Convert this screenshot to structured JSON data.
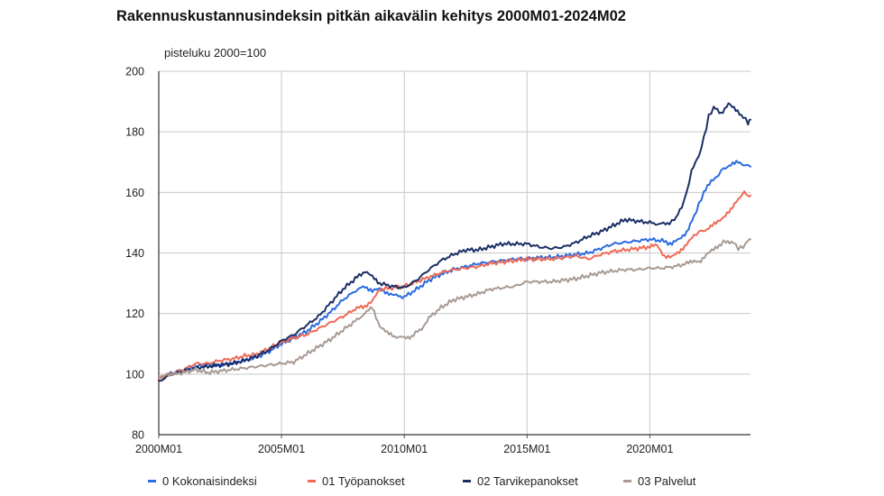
{
  "title": "Rakennuskustannusindeksin pitkän aikavälin kehitys 2000M01-2024M02",
  "unit_label": "pisteluku 2000=100",
  "chart_data": {
    "type": "line",
    "title": "Rakennuskustannusindeksin pitkän aikavälin kehitys 2000M01-2024M02",
    "ylabel": "pisteluku 2000=100",
    "xlabel": "",
    "x_ticks": [
      "2000M01",
      "2005M01",
      "2010M01",
      "2015M01",
      "2020M01"
    ],
    "x_range": [
      2000.0,
      2024.1
    ],
    "ylim": [
      80,
      200
    ],
    "y_ticks": [
      80,
      100,
      120,
      140,
      160,
      180,
      200
    ],
    "grid": true,
    "legend_position": "bottom",
    "series": [
      {
        "name": "0 Kokonaisindeksi",
        "color": "#2b6be0",
        "points": [
          [
            2000.0,
            98.5
          ],
          [
            2000.5,
            100.0
          ],
          [
            2001.0,
            101.0
          ],
          [
            2001.5,
            102.5
          ],
          [
            2002.0,
            103.0
          ],
          [
            2002.5,
            103.0
          ],
          [
            2003.0,
            103.5
          ],
          [
            2003.5,
            104.5
          ],
          [
            2004.0,
            105.5
          ],
          [
            2004.5,
            107.5
          ],
          [
            2005.0,
            110.0
          ],
          [
            2005.5,
            112.0
          ],
          [
            2006.0,
            114.0
          ],
          [
            2006.5,
            117.0
          ],
          [
            2007.0,
            120.5
          ],
          [
            2007.5,
            124.5
          ],
          [
            2008.0,
            127.5
          ],
          [
            2008.4,
            129.0
          ],
          [
            2008.7,
            127.5
          ],
          [
            2009.0,
            128.0
          ],
          [
            2009.3,
            127.0
          ],
          [
            2009.6,
            126.0
          ],
          [
            2010.0,
            125.5
          ],
          [
            2010.5,
            128.0
          ],
          [
            2011.0,
            131.0
          ],
          [
            2011.5,
            133.0
          ],
          [
            2012.0,
            134.5
          ],
          [
            2012.5,
            135.5
          ],
          [
            2013.0,
            136.5
          ],
          [
            2013.5,
            137.0
          ],
          [
            2014.0,
            137.5
          ],
          [
            2014.5,
            138.0
          ],
          [
            2015.0,
            138.0
          ],
          [
            2015.5,
            138.5
          ],
          [
            2016.0,
            138.5
          ],
          [
            2016.5,
            139.0
          ],
          [
            2017.0,
            139.5
          ],
          [
            2017.5,
            140.0
          ],
          [
            2018.0,
            141.5
          ],
          [
            2018.5,
            143.0
          ],
          [
            2019.0,
            143.5
          ],
          [
            2019.5,
            144.0
          ],
          [
            2020.0,
            144.5
          ],
          [
            2020.5,
            144.0
          ],
          [
            2020.9,
            143.0
          ],
          [
            2021.2,
            144.5
          ],
          [
            2021.5,
            147.0
          ],
          [
            2021.8,
            152.0
          ],
          [
            2022.0,
            156.0
          ],
          [
            2022.2,
            160.0
          ],
          [
            2022.5,
            163.5
          ],
          [
            2022.8,
            166.0
          ],
          [
            2023.0,
            168.0
          ],
          [
            2023.3,
            169.0
          ],
          [
            2023.6,
            170.0
          ],
          [
            2023.9,
            169.0
          ],
          [
            2024.1,
            168.5
          ]
        ]
      },
      {
        "name": "01 Työpanokset",
        "color": "#ee6a55",
        "points": [
          [
            2000.0,
            98.5
          ],
          [
            2000.5,
            100.0
          ],
          [
            2001.0,
            101.5
          ],
          [
            2001.5,
            103.5
          ],
          [
            2002.0,
            103.5
          ],
          [
            2002.5,
            104.5
          ],
          [
            2003.0,
            105.0
          ],
          [
            2003.5,
            106.0
          ],
          [
            2004.0,
            106.5
          ],
          [
            2004.5,
            108.5
          ],
          [
            2005.0,
            110.5
          ],
          [
            2005.5,
            112.0
          ],
          [
            2006.0,
            113.0
          ],
          [
            2006.5,
            115.0
          ],
          [
            2007.0,
            117.0
          ],
          [
            2007.5,
            119.0
          ],
          [
            2008.0,
            121.5
          ],
          [
            2008.4,
            122.5
          ],
          [
            2008.7,
            124.0
          ],
          [
            2009.0,
            128.0
          ],
          [
            2009.5,
            128.5
          ],
          [
            2010.0,
            129.0
          ],
          [
            2010.5,
            130.5
          ],
          [
            2011.0,
            132.0
          ],
          [
            2011.5,
            133.5
          ],
          [
            2012.0,
            134.5
          ],
          [
            2012.5,
            135.0
          ],
          [
            2013.0,
            135.5
          ],
          [
            2013.5,
            136.5
          ],
          [
            2014.0,
            137.0
          ],
          [
            2014.5,
            137.5
          ],
          [
            2015.0,
            138.0
          ],
          [
            2015.5,
            138.0
          ],
          [
            2016.0,
            138.0
          ],
          [
            2016.5,
            138.5
          ],
          [
            2017.0,
            139.0
          ],
          [
            2017.5,
            138.0
          ],
          [
            2018.0,
            139.5
          ],
          [
            2018.5,
            140.5
          ],
          [
            2019.0,
            141.0
          ],
          [
            2019.5,
            141.5
          ],
          [
            2020.0,
            142.0
          ],
          [
            2020.3,
            142.5
          ],
          [
            2020.6,
            139.0
          ],
          [
            2020.9,
            138.5
          ],
          [
            2021.2,
            140.5
          ],
          [
            2021.5,
            143.0
          ],
          [
            2021.8,
            145.5
          ],
          [
            2022.0,
            147.0
          ],
          [
            2022.4,
            148.0
          ],
          [
            2022.7,
            150.0
          ],
          [
            2023.0,
            152.0
          ],
          [
            2023.3,
            154.0
          ],
          [
            2023.6,
            158.0
          ],
          [
            2023.85,
            160.0
          ],
          [
            2024.0,
            158.5
          ],
          [
            2024.1,
            159.0
          ]
        ]
      },
      {
        "name": "02 Tarvikepanokset",
        "color": "#1b2f66",
        "points": [
          [
            2000.0,
            97.5
          ],
          [
            2000.5,
            100.0
          ],
          [
            2001.0,
            101.0
          ],
          [
            2001.5,
            102.0
          ],
          [
            2002.0,
            102.5
          ],
          [
            2002.5,
            103.0
          ],
          [
            2003.0,
            103.5
          ],
          [
            2003.5,
            104.5
          ],
          [
            2004.0,
            106.0
          ],
          [
            2004.5,
            108.0
          ],
          [
            2005.0,
            111.0
          ],
          [
            2005.5,
            113.0
          ],
          [
            2006.0,
            116.0
          ],
          [
            2006.5,
            119.0
          ],
          [
            2007.0,
            123.5
          ],
          [
            2007.5,
            128.0
          ],
          [
            2008.0,
            131.5
          ],
          [
            2008.4,
            134.0
          ],
          [
            2008.7,
            132.0
          ],
          [
            2009.0,
            130.0
          ],
          [
            2009.5,
            129.0
          ],
          [
            2010.0,
            128.5
          ],
          [
            2010.5,
            131.0
          ],
          [
            2011.0,
            134.5
          ],
          [
            2011.5,
            137.5
          ],
          [
            2012.0,
            139.5
          ],
          [
            2012.5,
            141.0
          ],
          [
            2013.0,
            141.0
          ],
          [
            2013.5,
            142.0
          ],
          [
            2014.0,
            143.0
          ],
          [
            2014.5,
            143.0
          ],
          [
            2015.0,
            143.0
          ],
          [
            2015.5,
            142.0
          ],
          [
            2016.0,
            141.5
          ],
          [
            2016.5,
            142.0
          ],
          [
            2017.0,
            143.5
          ],
          [
            2017.5,
            145.5
          ],
          [
            2018.0,
            147.0
          ],
          [
            2018.5,
            149.0
          ],
          [
            2019.0,
            151.0
          ],
          [
            2019.5,
            150.5
          ],
          [
            2020.0,
            150.0
          ],
          [
            2020.4,
            149.5
          ],
          [
            2020.8,
            150.0
          ],
          [
            2021.0,
            151.0
          ],
          [
            2021.3,
            155.0
          ],
          [
            2021.5,
            160.0
          ],
          [
            2021.7,
            167.0
          ],
          [
            2022.0,
            172.0
          ],
          [
            2022.2,
            178.0
          ],
          [
            2022.4,
            185.0
          ],
          [
            2022.6,
            188.0
          ],
          [
            2022.9,
            186.0
          ],
          [
            2023.2,
            189.5
          ],
          [
            2023.5,
            187.0
          ],
          [
            2023.8,
            185.0
          ],
          [
            2024.0,
            183.0
          ],
          [
            2024.1,
            184.0
          ]
        ]
      },
      {
        "name": "03 Palvelut",
        "color": "#a89a92",
        "points": [
          [
            2000.0,
            99.0
          ],
          [
            2000.5,
            100.0
          ],
          [
            2001.0,
            100.5
          ],
          [
            2001.5,
            101.5
          ],
          [
            2002.0,
            100.5
          ],
          [
            2002.5,
            101.0
          ],
          [
            2003.0,
            101.5
          ],
          [
            2003.5,
            102.0
          ],
          [
            2004.0,
            102.5
          ],
          [
            2004.5,
            103.0
          ],
          [
            2005.0,
            103.5
          ],
          [
            2005.5,
            104.0
          ],
          [
            2006.0,
            106.5
          ],
          [
            2006.5,
            109.0
          ],
          [
            2007.0,
            111.5
          ],
          [
            2007.5,
            114.5
          ],
          [
            2008.0,
            117.5
          ],
          [
            2008.4,
            120.0
          ],
          [
            2008.7,
            122.0
          ],
          [
            2009.0,
            116.0
          ],
          [
            2009.3,
            113.5
          ],
          [
            2009.6,
            112.5
          ],
          [
            2010.0,
            112.0
          ],
          [
            2010.3,
            112.5
          ],
          [
            2010.7,
            115.0
          ],
          [
            2011.0,
            118.5
          ],
          [
            2011.5,
            122.0
          ],
          [
            2012.0,
            124.5
          ],
          [
            2012.5,
            125.5
          ],
          [
            2013.0,
            126.5
          ],
          [
            2013.5,
            128.0
          ],
          [
            2014.0,
            128.5
          ],
          [
            2014.5,
            129.0
          ],
          [
            2015.0,
            130.5
          ],
          [
            2015.5,
            130.5
          ],
          [
            2016.0,
            130.5
          ],
          [
            2016.5,
            131.0
          ],
          [
            2017.0,
            131.5
          ],
          [
            2017.5,
            132.5
          ],
          [
            2018.0,
            133.5
          ],
          [
            2018.5,
            134.0
          ],
          [
            2019.0,
            134.5
          ],
          [
            2019.5,
            134.5
          ],
          [
            2020.0,
            135.0
          ],
          [
            2020.5,
            135.0
          ],
          [
            2021.0,
            135.5
          ],
          [
            2021.5,
            136.5
          ],
          [
            2021.8,
            137.5
          ],
          [
            2022.0,
            137.0
          ],
          [
            2022.3,
            139.5
          ],
          [
            2022.6,
            141.0
          ],
          [
            2022.9,
            143.0
          ],
          [
            2023.1,
            144.0
          ],
          [
            2023.4,
            143.5
          ],
          [
            2023.6,
            141.5
          ],
          [
            2023.8,
            142.0
          ],
          [
            2024.0,
            144.0
          ],
          [
            2024.1,
            144.5
          ]
        ]
      }
    ]
  }
}
